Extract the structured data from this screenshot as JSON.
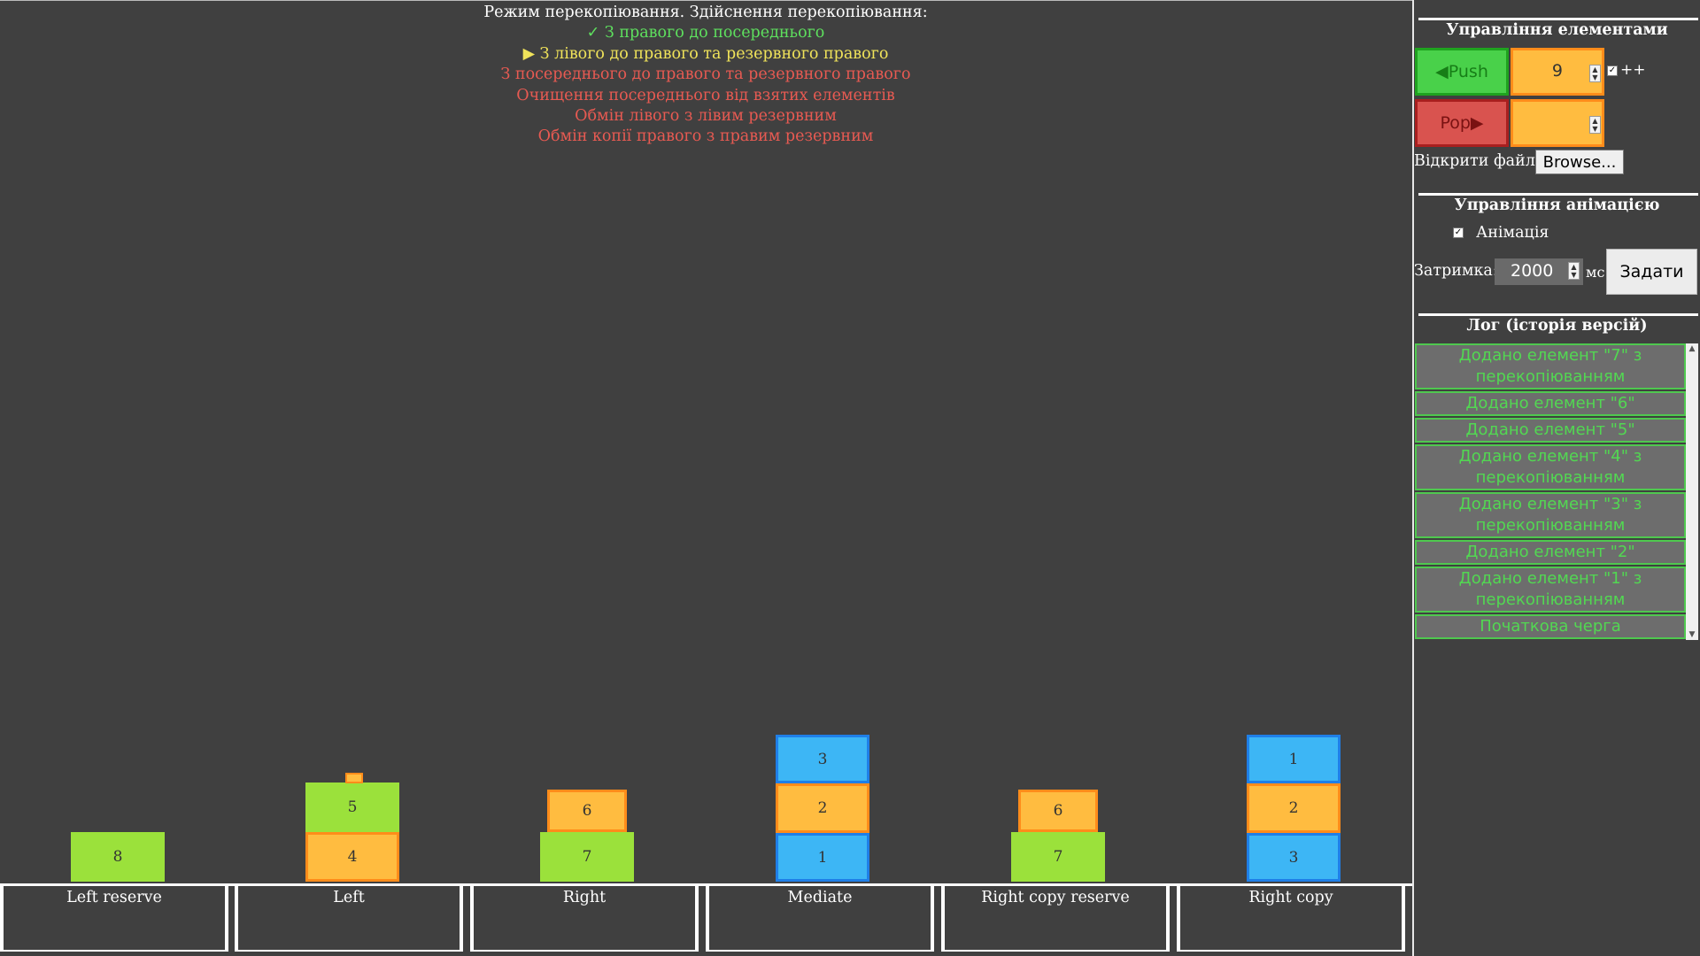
{
  "mode_lines": [
    {
      "text": "Режим перекопіювання. Здійснення перекопіювання:",
      "color": "#ffffff"
    },
    {
      "text": "✓ З правого до посереднього",
      "color": "#5ee05e"
    },
    {
      "text": "▶ З лівого до правого та резервного правого",
      "color": "#f0e35a"
    },
    {
      "text": "З посереднього до правого та резервного правого",
      "color": "#e85a52"
    },
    {
      "text": "Очищення посереднього від взятих елементів",
      "color": "#e85a52"
    },
    {
      "text": "Обмін лівого з лівим резервним",
      "color": "#e85a52"
    },
    {
      "text": "Обмін копії правого з правим резервним",
      "color": "#e85a52"
    }
  ],
  "stacks": [
    {
      "label": "Left reserve",
      "items": [
        {
          "value": "8",
          "color": "green"
        }
      ]
    },
    {
      "label": "Left",
      "items": [
        {
          "value": "4",
          "color": "orange"
        },
        {
          "value": "5",
          "color": "green"
        }
      ]
    },
    {
      "label": "Right",
      "items": [
        {
          "value": "7",
          "color": "green"
        },
        {
          "value": "6",
          "color": "orange"
        }
      ]
    },
    {
      "label": "Mediate",
      "items": [
        {
          "value": "1",
          "color": "blue"
        },
        {
          "value": "2",
          "color": "orange"
        },
        {
          "value": "3",
          "color": "blue"
        }
      ]
    },
    {
      "label": "Right copy reserve",
      "items": [
        {
          "value": "7",
          "color": "green"
        },
        {
          "value": "6",
          "color": "orange"
        }
      ]
    },
    {
      "label": "Right copy",
      "items": [
        {
          "value": "3",
          "color": "blue"
        },
        {
          "value": "2",
          "color": "orange"
        },
        {
          "value": "1",
          "color": "blue"
        }
      ]
    }
  ],
  "panel": {
    "elements_heading": "Управління елементами",
    "push_label": "◀Push",
    "pop_label": "Pop▶",
    "push_value": "9",
    "pop_value": "",
    "increment_checked": true,
    "increment_label": "++",
    "open_file_label": "Відкрити файл:",
    "browse_label": "Browse...",
    "animation_heading": "Управління анімацією",
    "animation_checked": true,
    "animation_label": "Анімація",
    "delay_label": "Затримка:",
    "delay_value": "2000",
    "delay_unit": "мс",
    "set_label": "Задати",
    "log_heading": "Лог (історія версій)"
  },
  "log": [
    "Додано елемент \"7\" з перекопіюванням",
    "Додано елемент \"6\"",
    "Додано елемент \"5\"",
    "Додано елемент \"4\" з перекопіюванням",
    "Додано елемент \"3\" з перекопіюванням",
    "Додано елемент \"2\"",
    "Додано елемент \"1\" з перекопіюванням",
    "Початкова черга"
  ]
}
